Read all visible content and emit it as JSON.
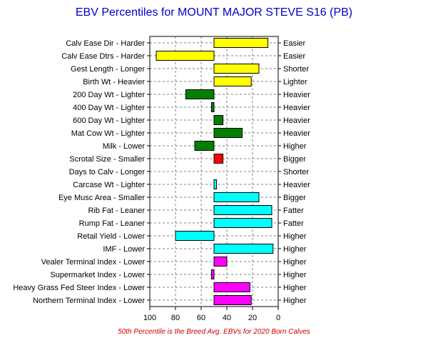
{
  "chart_data": {
    "type": "bar",
    "title": "EBV Percentiles for MOUNT MAJOR STEVE S16 (PB)",
    "footnote": "50th Percentile is the Breed Avg. EBVs for 2020 Born Calves",
    "x_ticks": [
      "100",
      "80",
      "60",
      "40",
      "20",
      "0"
    ],
    "xlim": [
      100,
      0
    ],
    "grid": true,
    "baseline": 50,
    "traits": [
      {
        "left_label": "Calv Ease Dir - Harder",
        "right_label": "Easier",
        "value": 8,
        "color": "#ffff00"
      },
      {
        "left_label": "Calv Ease Dtrs - Harder",
        "right_label": "Easier",
        "value": 95,
        "color": "#ffff00"
      },
      {
        "left_label": "Gest Length - Longer",
        "right_label": "Shorter",
        "value": 15,
        "color": "#ffff00"
      },
      {
        "left_label": "Birth Wt - Heavier",
        "right_label": "Lighter",
        "value": 21,
        "color": "#ffff00"
      },
      {
        "left_label": "200 Day Wt - Lighter",
        "right_label": "Heavier",
        "value": 72,
        "color": "#008000"
      },
      {
        "left_label": "400 Day Wt - Lighter",
        "right_label": "Heavier",
        "value": 52,
        "color": "#008000"
      },
      {
        "left_label": "600 Day Wt - Lighter",
        "right_label": "Heavier",
        "value": 43,
        "color": "#008000"
      },
      {
        "left_label": "Mat Cow Wt - Lighter",
        "right_label": "Heavier",
        "value": 28,
        "color": "#008000"
      },
      {
        "left_label": "Milk - Lower",
        "right_label": "Higher",
        "value": 65,
        "color": "#008000"
      },
      {
        "left_label": "Scrotal Size - Smaller",
        "right_label": "Bigger",
        "value": 43,
        "color": "#ff0000"
      },
      {
        "left_label": "Days to Calv - Longer",
        "right_label": "Shorter",
        "value": 50,
        "color": "#ff0000"
      },
      {
        "left_label": "Carcase Wt - Lighter",
        "right_label": "Heavier",
        "value": 48,
        "color": "#00ffff"
      },
      {
        "left_label": "Eye Musc Area - Smaller",
        "right_label": "Bigger",
        "value": 15,
        "color": "#00ffff"
      },
      {
        "left_label": "Rib Fat - Leaner",
        "right_label": "Fatter",
        "value": 5,
        "color": "#00ffff"
      },
      {
        "left_label": "Rump Fat - Leaner",
        "right_label": "Fatter",
        "value": 5,
        "color": "#00ffff"
      },
      {
        "left_label": "Retail Yield - Lower",
        "right_label": "Higher",
        "value": 80,
        "color": "#00ffff"
      },
      {
        "left_label": "IMF - Lower",
        "right_label": "Higher",
        "value": 4,
        "color": "#00ffff"
      },
      {
        "left_label": "Vealer Terminal Index - Lower",
        "right_label": "Higher",
        "value": 40,
        "color": "#ff00ff"
      },
      {
        "left_label": "Supermarket Index - Lower",
        "right_label": "Higher",
        "value": 52,
        "color": "#ff00ff"
      },
      {
        "left_label": "Heavy Grass Fed Steer Index - Lower",
        "right_label": "Higher",
        "value": 22,
        "color": "#ff00ff"
      },
      {
        "left_label": "Northern Terminal Index - Lower",
        "right_label": "Higher",
        "value": 21,
        "color": "#ff00ff"
      }
    ]
  }
}
